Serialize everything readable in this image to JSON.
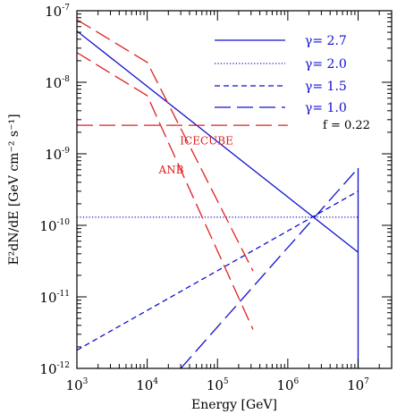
{
  "chart_data": {
    "type": "line",
    "xlabel": "Energy [GeV]",
    "ylabel": "E²dN/dE [GeV cm⁻² s⁻¹]",
    "xscale": "log",
    "yscale": "log",
    "xlim": [
      1000,
      30000000
    ],
    "ylim": [
      1e-12,
      1e-07
    ],
    "x_ticks": [
      {
        "base": "10",
        "exp": "3",
        "value": 1000
      },
      {
        "base": "10",
        "exp": "4",
        "value": 10000
      },
      {
        "base": "10",
        "exp": "5",
        "value": 100000
      },
      {
        "base": "10",
        "exp": "6",
        "value": 1000000
      },
      {
        "base": "10",
        "exp": "7",
        "value": 10000000
      }
    ],
    "y_ticks": [
      {
        "base": "10",
        "exp": "-12",
        "value": 1e-12
      },
      {
        "base": "10",
        "exp": "-11",
        "value": 1e-11
      },
      {
        "base": "10",
        "exp": "-10",
        "value": 1e-10
      },
      {
        "base": "10",
        "exp": "-9",
        "value": 1e-09
      },
      {
        "base": "10",
        "exp": "-8",
        "value": 1e-08
      },
      {
        "base": "10",
        "exp": "-7",
        "value": 1e-07
      }
    ],
    "legend_placement": "top-right",
    "legend": [
      {
        "label": "γ= 2.7",
        "dash": "solid",
        "color": "#1010d0"
      },
      {
        "label": "γ= 2.0",
        "dash": "dotted",
        "color": "#1010d0"
      },
      {
        "label": "γ= 1.5",
        "dash": "short-dash",
        "color": "#1010d0"
      },
      {
        "label": "γ= 1.0",
        "dash": "long-dash",
        "color": "#1010d0"
      }
    ],
    "annotation_f": "f = 0.22",
    "annotations": [
      {
        "text": "ICECUBE",
        "x": 70000,
        "y": 1.35e-09,
        "color": "#e02020"
      },
      {
        "text": "ANB",
        "x": 22000,
        "y": 5.3e-10,
        "color": "#e02020"
      }
    ],
    "series": [
      {
        "dash": "solid",
        "color": "#1010d0",
        "points": [
          [
            1000,
            5.2e-08
          ],
          [
            10000000,
            4.2e-11
          ]
        ]
      },
      {
        "dash": "dotted",
        "color": "#1010d0",
        "points": [
          [
            1000,
            1.3e-10
          ],
          [
            10000000,
            1.3e-10
          ]
        ]
      },
      {
        "dash": "short-dash",
        "color": "#1010d0",
        "points": [
          [
            1000,
            1.8e-12
          ],
          [
            10000000,
            3e-10
          ]
        ]
      },
      {
        "dash": "long-dash",
        "color": "#1010d0",
        "points": [
          [
            30000,
            1e-12
          ],
          [
            10000000,
            6.3e-10
          ]
        ]
      },
      {
        "dash": "solid",
        "color": "#1010d0",
        "points": [
          [
            10000000,
            1e-12
          ],
          [
            10000000,
            6.3e-10
          ]
        ]
      },
      {
        "dash": "long-dash",
        "color": "#e02020",
        "points": [
          [
            1000,
            2.5e-09
          ],
          [
            1000000,
            2.5e-09
          ]
        ]
      },
      {
        "dash": "long-dash",
        "color": "#e02020",
        "points": [
          [
            1000,
            7.5e-08
          ],
          [
            10000,
            1.9e-08
          ],
          [
            320000,
            2.3e-11
          ]
        ]
      },
      {
        "dash": "long-dash",
        "color": "#e02020",
        "points": [
          [
            1000,
            2.6e-08
          ],
          [
            10000,
            6.5e-09
          ],
          [
            320000,
            3.5e-12
          ]
        ]
      }
    ]
  }
}
